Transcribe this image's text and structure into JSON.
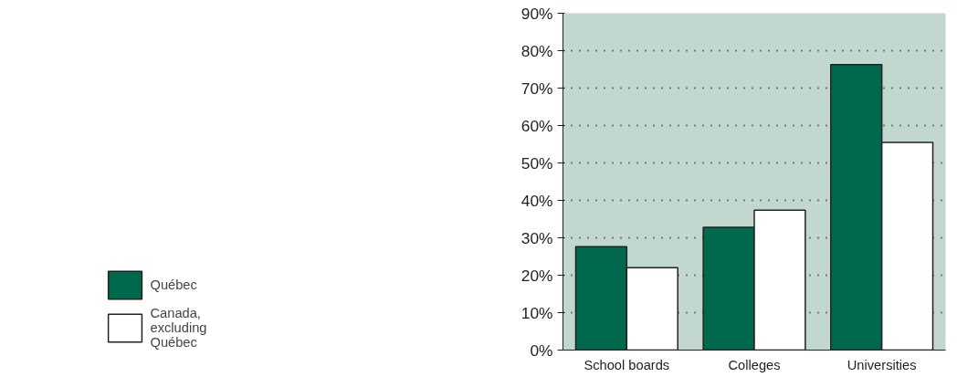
{
  "chart_data": {
    "type": "bar",
    "categories": [
      "School boards",
      "Colleges",
      "Universities"
    ],
    "series": [
      {
        "name": "Québec",
        "color": "#00684d",
        "values": [
          27.6,
          32.8,
          76.3
        ]
      },
      {
        "name": "Canada, excluding Québec",
        "color": "#ffffff",
        "values": [
          22.0,
          37.4,
          55.5
        ]
      }
    ],
    "ylim": [
      0,
      90
    ],
    "yticks": [
      {
        "value": 0,
        "label": "0%"
      },
      {
        "value": 10,
        "label": "10%"
      },
      {
        "value": 20,
        "label": "20%"
      },
      {
        "value": 30,
        "label": "30%"
      },
      {
        "value": 40,
        "label": "40%"
      },
      {
        "value": 50,
        "label": "50%"
      },
      {
        "value": 60,
        "label": "60%"
      },
      {
        "value": 70,
        "label": "70%"
      },
      {
        "value": 80,
        "label": "80%"
      },
      {
        "value": 90,
        "label": "90%"
      }
    ],
    "grid": "y",
    "legend": "bottom left"
  }
}
